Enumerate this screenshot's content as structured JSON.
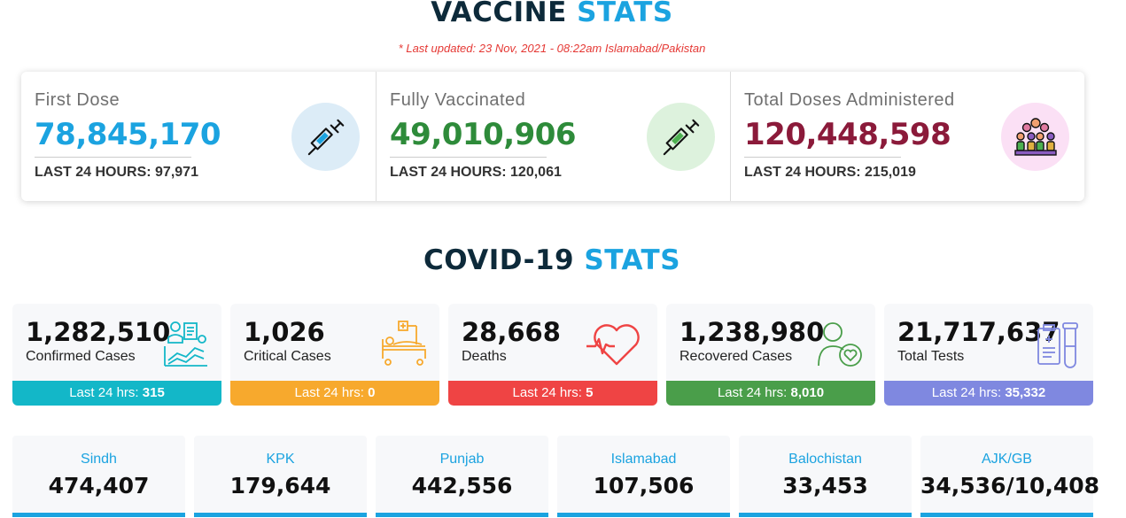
{
  "vaccine": {
    "title_dark": "VACCINE",
    "title_accent": "STATS",
    "updated": "* Last updated: 23 Nov, 2021 - 08:22am Islamabad/Pakistan",
    "cards": [
      {
        "label": "First Dose",
        "value": "78,845,170",
        "sub_label": "LAST 24 HOURS:",
        "sub_value": "97,971",
        "color": "#1ba3e0",
        "icon_bg": "#dcecf7",
        "icon": "syringe-icon"
      },
      {
        "label": "Fully Vaccinated",
        "value": "49,010,906",
        "sub_label": "LAST 24 HOURS:",
        "sub_value": "120,061",
        "color": "#2e8b3a",
        "icon_bg": "#ddf2dd",
        "icon": "syringe-green-icon"
      },
      {
        "label": "Total Doses Administered",
        "value": "120,448,598",
        "sub_label": "LAST 24 HOURS:",
        "sub_value": "215,019",
        "color": "#8b1a3a",
        "icon_bg": "#fbe0f5",
        "icon": "crowd-icon"
      }
    ]
  },
  "covid": {
    "title_dark": "COVID-19",
    "title_accent": "STATS",
    "cards": [
      {
        "value": "1,282,510",
        "label": "Confirmed Cases",
        "bar_label": "Last 24 hrs:",
        "bar_value": "315",
        "color": "#13b7c8",
        "icon": "chart-analytics-icon"
      },
      {
        "value": "1,026",
        "label": "Critical Cases",
        "bar_label": "Last 24 hrs:",
        "bar_value": "0",
        "color": "#f7a92d",
        "icon": "hospital-bed-icon"
      },
      {
        "value": "28,668",
        "label": "Deaths",
        "bar_label": "Last 24 hrs:",
        "bar_value": "5",
        "color": "#ef4444",
        "icon": "heartbeat-icon"
      },
      {
        "value": "1,238,980",
        "label": "Recovered Cases",
        "bar_label": "Last 24 hrs:",
        "bar_value": "8,010",
        "color": "#4a9e4a",
        "icon": "recovered-person-icon"
      },
      {
        "value": "21,717,637",
        "label": "Total Tests",
        "bar_label": "Last 24 hrs:",
        "bar_value": "35,332",
        "color": "#7f88e0",
        "icon": "lab-tests-icon"
      }
    ]
  },
  "provinces": [
    {
      "name": "Sindh",
      "value": "474,407"
    },
    {
      "name": "KPK",
      "value": "179,644"
    },
    {
      "name": "Punjab",
      "value": "442,556"
    },
    {
      "name": "Islamabad",
      "value": "107,506"
    },
    {
      "name": "Balochistan",
      "value": "33,453"
    },
    {
      "name": "AJK/GB",
      "value": "34,536/10,408"
    }
  ]
}
